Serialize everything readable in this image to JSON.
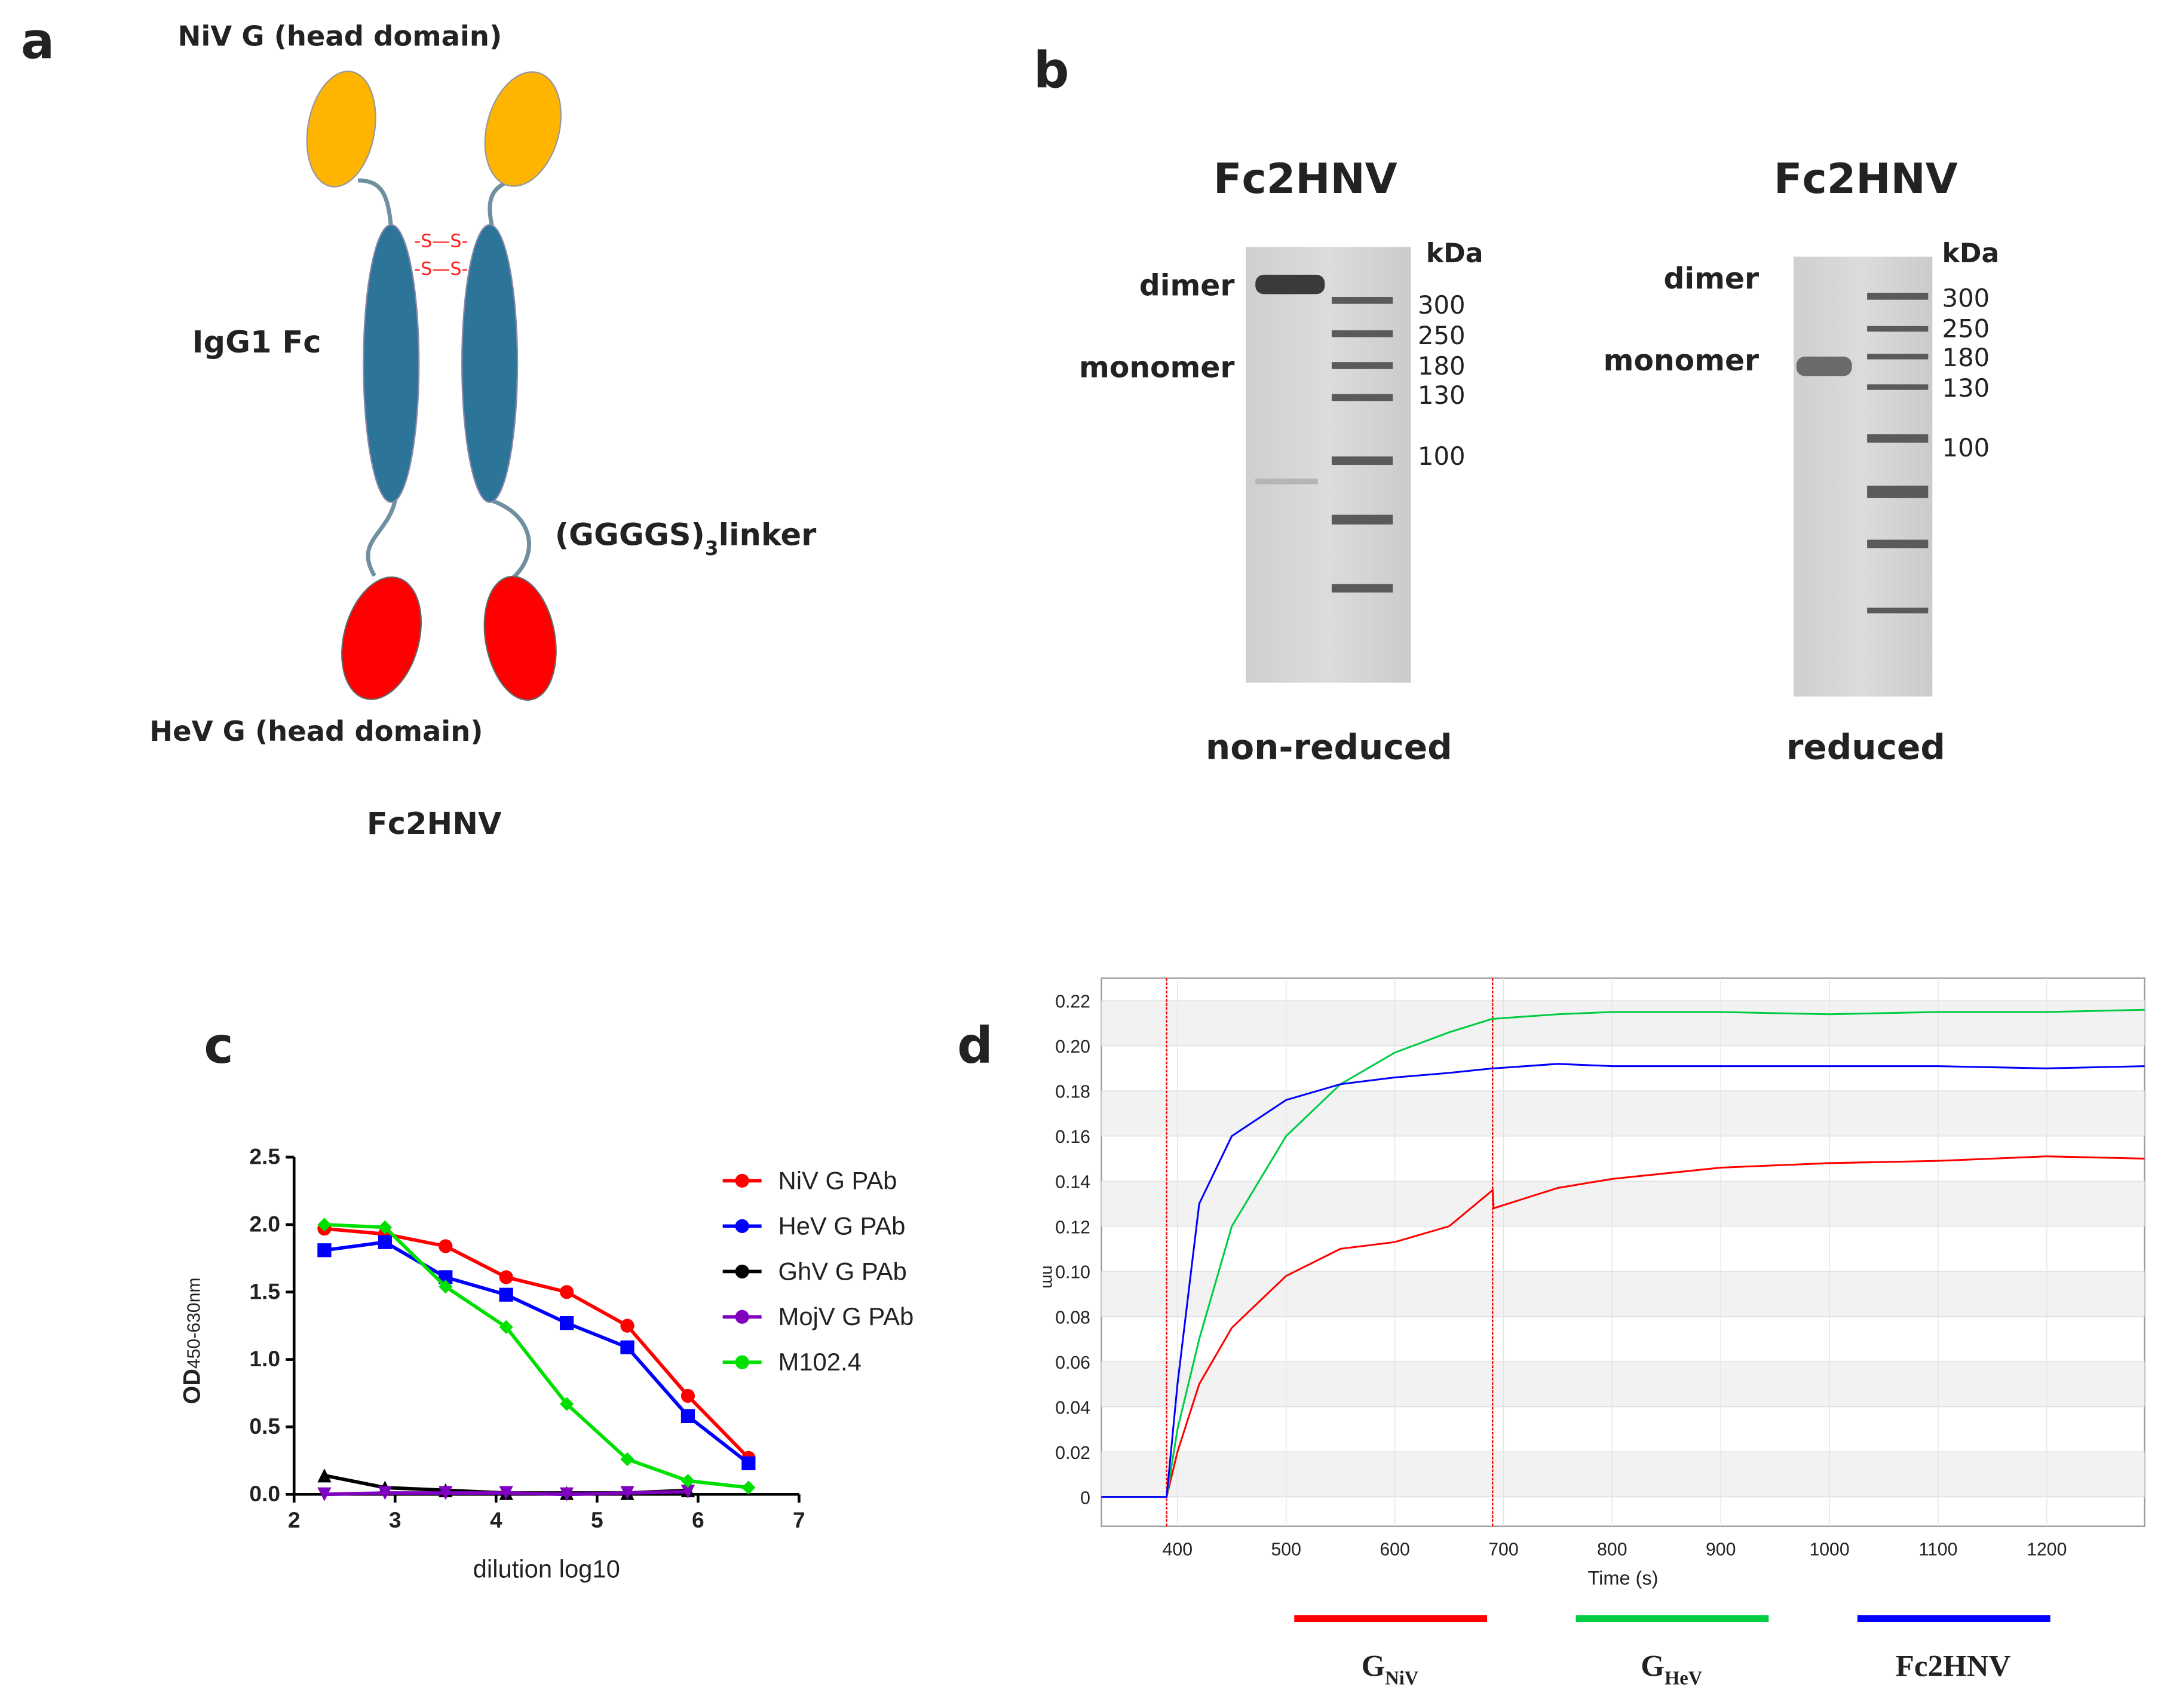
{
  "panel_a": {
    "label": "a",
    "niv_label": "NiV G (head domain)",
    "disulfide": [
      "-S—S-",
      "-S—S-"
    ],
    "fc_label": "IgG1 Fc",
    "linker_prefix": "(GGGGS)",
    "linker_sub": "3",
    "linker_suffix": "linker",
    "hev_label": "HeV G (head domain)",
    "name": "Fc2HNV"
  },
  "panel_b": {
    "label": "b",
    "gels": [
      {
        "title": "Fc2HNV",
        "dimer": "dimer",
        "monomer": "monomer",
        "unit": "kDa",
        "markers": [
          300,
          250,
          180,
          130,
          100
        ],
        "condition": "non-reduced"
      },
      {
        "title": "Fc2HNV",
        "dimer": "dimer",
        "monomer": "monomer",
        "unit": "kDa",
        "markers": [
          300,
          250,
          180,
          130,
          100
        ],
        "condition": "reduced"
      }
    ]
  },
  "panel_c": {
    "label": "c"
  },
  "panel_d": {
    "label": "d"
  },
  "chart_data": [
    {
      "type": "line",
      "x_label": "dilution log10",
      "y_label": "OD",
      "y_label_subscript": "450-630nm",
      "legend": "upper right",
      "grid": false,
      "x": [
        2.3,
        2.9,
        3.5,
        4.1,
        4.7,
        5.3,
        5.9,
        6.5
      ],
      "series": [
        {
          "name": "NiV G PAb",
          "color": "#ff0000",
          "marker": "circle",
          "values": [
            1.97,
            1.93,
            1.84,
            1.61,
            1.5,
            1.25,
            0.73,
            0.27
          ]
        },
        {
          "name": "HeV G PAb",
          "color": "#0000ff",
          "marker": "square",
          "values": [
            1.81,
            1.87,
            1.61,
            1.48,
            1.27,
            1.09,
            0.58,
            0.23
          ]
        },
        {
          "name": "GhV G PAb",
          "color": "#000000",
          "marker": "triangle",
          "values": [
            0.14,
            0.05,
            0.03,
            0.01,
            0.01,
            0.01,
            0.03,
            null
          ]
        },
        {
          "name": "MojV G  PAb",
          "color": "#8000c0",
          "marker": "triangle-down",
          "values": [
            0.0,
            0.01,
            0.01,
            0.01,
            0.0,
            0.01,
            0.02,
            null
          ]
        },
        {
          "name": "M102.4",
          "color": "#00e000",
          "marker": "diamond",
          "values": [
            2.0,
            1.98,
            1.54,
            1.24,
            0.67,
            0.26,
            0.1,
            0.05
          ]
        }
      ],
      "xlim": [
        2,
        7
      ],
      "xticks": [
        2,
        3,
        4,
        5,
        6,
        7
      ],
      "ylim": [
        0,
        2.5
      ],
      "yticks": [
        {
          "value": 0,
          "label": "0.0"
        },
        {
          "value": 0.5,
          "label": "0.5"
        },
        {
          "value": 1,
          "label": "1.0"
        },
        {
          "value": 1.5,
          "label": "1.5"
        },
        {
          "value": 2,
          "label": "2.0"
        },
        {
          "value": 2.5,
          "label": "2.5"
        }
      ]
    },
    {
      "type": "line",
      "x_label": "Time (s)",
      "y_label": "nm",
      "legend": "bottom",
      "grid": true,
      "vlines": [
        390,
        690
      ],
      "x": [
        330,
        380,
        390,
        400,
        420,
        450,
        500,
        550,
        600,
        650,
        690,
        691,
        750,
        800,
        900,
        1000,
        1100,
        1200,
        1290
      ],
      "series": [
        {
          "name": "G",
          "name_subscript": "NiV",
          "color": "#ff0000",
          "values": [
            0,
            0,
            0,
            0.02,
            0.05,
            0.075,
            0.098,
            0.11,
            0.113,
            0.12,
            0.136,
            0.128,
            0.137,
            0.141,
            0.146,
            0.148,
            0.149,
            0.151,
            0.15
          ]
        },
        {
          "name": "G",
          "name_subscript": "HeV",
          "color": "#00cc44",
          "values": [
            0,
            0,
            0,
            0.03,
            0.07,
            0.12,
            0.16,
            0.183,
            0.197,
            0.206,
            0.212,
            0.212,
            0.214,
            0.215,
            0.215,
            0.214,
            0.215,
            0.215,
            0.216
          ]
        },
        {
          "name": "Fc2HNV",
          "color": "#0000ff",
          "values": [
            0,
            0,
            0,
            0.05,
            0.13,
            0.16,
            0.176,
            0.183,
            0.186,
            0.188,
            0.19,
            0.19,
            0.192,
            0.191,
            0.191,
            0.191,
            0.191,
            0.19,
            0.191
          ]
        }
      ],
      "xlim": [
        330,
        1290
      ],
      "xticks": [
        400,
        500,
        600,
        700,
        800,
        900,
        1000,
        1100,
        1200
      ],
      "ylim": [
        -0.013,
        0.23
      ],
      "yticks": [
        0,
        0.02,
        0.04,
        0.06,
        0.08,
        {
          "value": 0.1,
          "label": "0.10"
        },
        0.12,
        0.14,
        0.16,
        0.18,
        {
          "value": 0.2,
          "label": "0.20"
        },
        0.22
      ]
    }
  ]
}
